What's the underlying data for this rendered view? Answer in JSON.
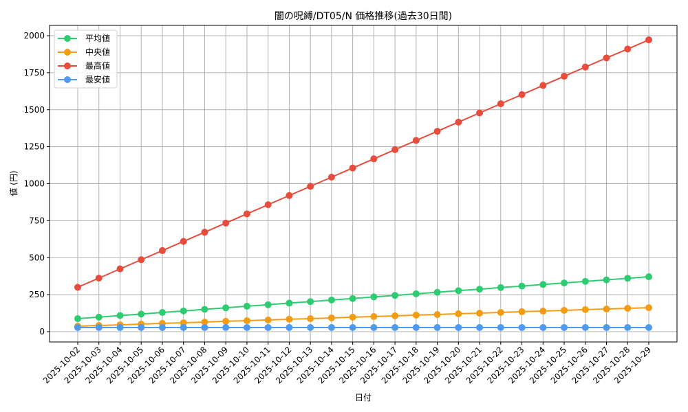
{
  "chart_data": {
    "type": "line",
    "title": "闇の呪縛/DT05/N 価格推移(過去30日間)",
    "xlabel": "日付",
    "ylabel": "値 (円)",
    "ylim": [
      -60,
      2060
    ],
    "yticks": [
      0,
      250,
      500,
      750,
      1000,
      1250,
      1500,
      1750,
      2000
    ],
    "grid": true,
    "legend_position": "upper left",
    "categories": [
      "2025-10-02",
      "2025-10-03",
      "2025-10-04",
      "2025-10-05",
      "2025-10-06",
      "2025-10-07",
      "2025-10-08",
      "2025-10-09",
      "2025-10-10",
      "2025-10-11",
      "2025-10-12",
      "2025-10-13",
      "2025-10-14",
      "2025-10-15",
      "2025-10-16",
      "2025-10-17",
      "2025-10-18",
      "2025-10-19",
      "2025-10-20",
      "2025-10-21",
      "2025-10-22",
      "2025-10-23",
      "2025-10-24",
      "2025-10-25",
      "2025-10-26",
      "2025-10-27",
      "2025-10-28",
      "2025-10-29"
    ],
    "series": [
      {
        "name": "平均値",
        "color": "#2ecc71",
        "values": [
          88,
          98,
          109,
          119,
          130,
          140,
          151,
          161,
          172,
          182,
          193,
          203,
          214,
          224,
          235,
          245,
          256,
          266,
          277,
          287,
          298,
          308,
          319,
          329,
          340,
          350,
          361,
          371
        ]
      },
      {
        "name": "中央値",
        "color": "#f39c12",
        "values": [
          37,
          42,
          46,
          51,
          56,
          60,
          65,
          70,
          74,
          79,
          84,
          88,
          93,
          98,
          102,
          107,
          112,
          116,
          121,
          125,
          130,
          135,
          139,
          144,
          149,
          153,
          158,
          162
        ]
      },
      {
        "name": "最高値",
        "color": "#e74c3c",
        "values": [
          300,
          362,
          424,
          486,
          548,
          610,
          672,
          734,
          796,
          858,
          920,
          982,
          1044,
          1106,
          1168,
          1230,
          1292,
          1354,
          1416,
          1478,
          1540,
          1602,
          1664,
          1726,
          1788,
          1850,
          1910,
          1972
        ]
      },
      {
        "name": "最安値",
        "color": "#4e9af1",
        "values": [
          28,
          28,
          28,
          28,
          28,
          28,
          28,
          28,
          28,
          28,
          28,
          28,
          28,
          28,
          28,
          28,
          28,
          28,
          28,
          28,
          28,
          28,
          28,
          28,
          28,
          28,
          28,
          28
        ]
      }
    ]
  }
}
